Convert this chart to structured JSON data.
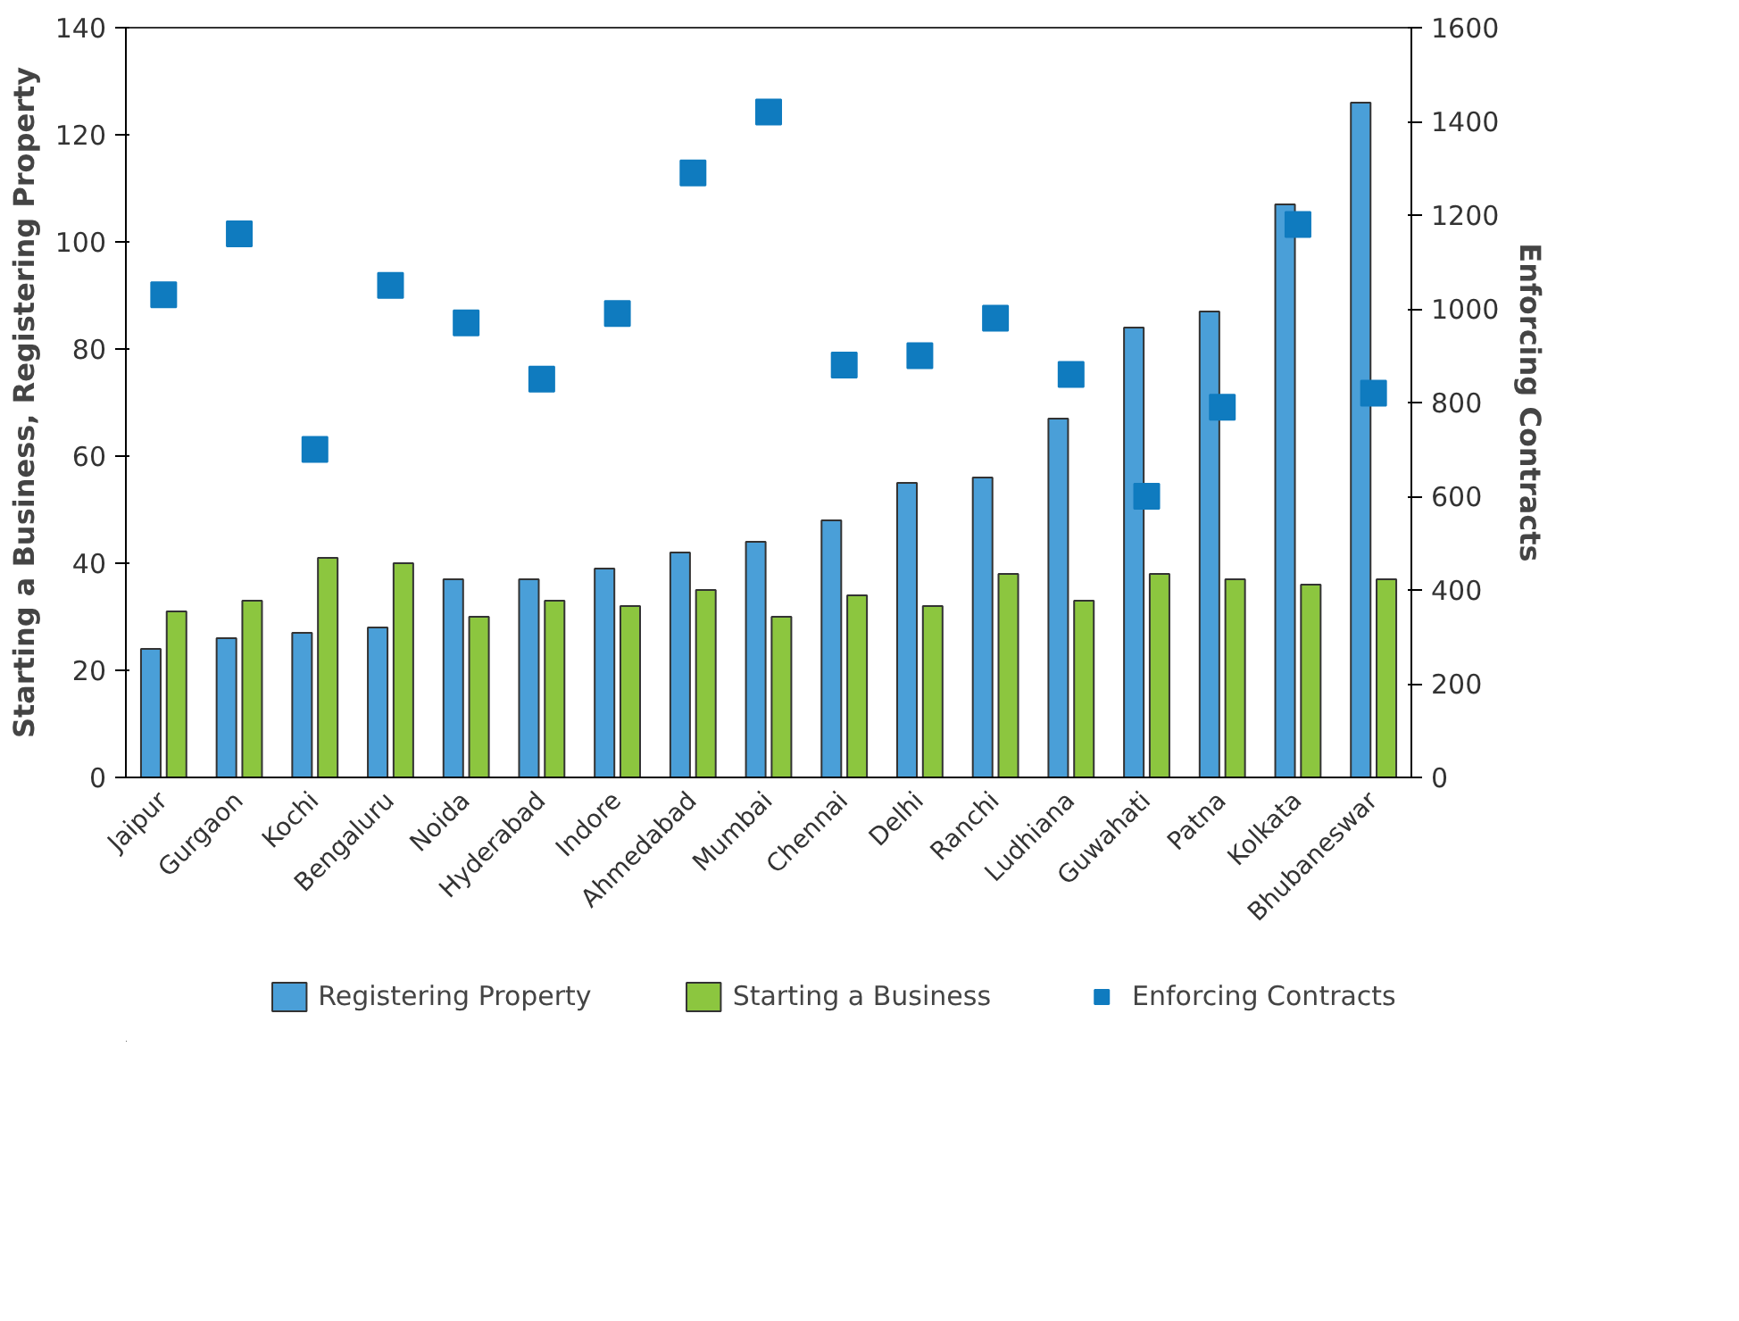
{
  "chart_data": {
    "type": "bar",
    "ylabel": "Starting a Business, Registering Property",
    "y2label": "Enforcing Contracts",
    "categories": [
      "Jaipur",
      "Gurgaon",
      "Kochi",
      "Bengaluru",
      "Noida",
      "Hyderabad",
      "Indore",
      "Ahmedabad",
      "Mumbai",
      "Chennai",
      "Delhi",
      "Ranchi",
      "Ludhiana",
      "Guwahati",
      "Patna",
      "Kolkata",
      "Bhubaneswar"
    ],
    "series": [
      {
        "name": "Registering Property",
        "color": "#4a9fd8",
        "values": [
          24,
          26,
          27,
          28,
          37,
          37,
          39,
          42,
          44,
          48,
          55,
          56,
          67,
          84,
          87,
          107,
          126
        ]
      },
      {
        "name": "Starting a Business",
        "color": "#8cc63f",
        "values": [
          31,
          33,
          41,
          40,
          30,
          33,
          32,
          35,
          30,
          34,
          32,
          38,
          33,
          38,
          37,
          36,
          37
        ]
      },
      {
        "name": "Enforcing Contracts",
        "type": "scatter",
        "axis": "y2",
        "marker": "square",
        "color": "#0f7bbf",
        "values": [
          1030,
          1160,
          700,
          1050,
          970,
          850,
          990,
          1290,
          1420,
          880,
          900,
          980,
          860,
          600,
          790,
          1180,
          820
        ]
      }
    ],
    "ylim": [
      0,
      140
    ],
    "yticks": [
      0,
      20,
      40,
      60,
      80,
      100,
      120,
      140
    ],
    "y2lim": [
      0,
      1600
    ],
    "y2ticks": [
      0,
      200,
      400,
      600,
      800,
      1000,
      1200,
      1400,
      1600
    ],
    "grid": false,
    "legend": "bottom"
  }
}
